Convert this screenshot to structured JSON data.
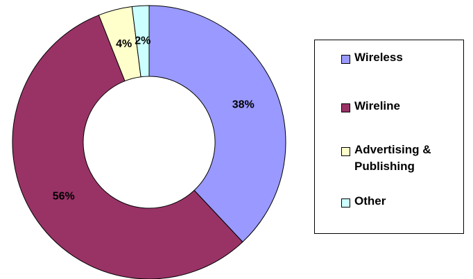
{
  "chart_data": {
    "type": "donut",
    "categories": [
      "Wireless",
      "Wireline",
      "Advertising & Publishing",
      "Other"
    ],
    "values": [
      38,
      56,
      4,
      2
    ],
    "value_labels": [
      "38%",
      "56%",
      "4%",
      "2%"
    ],
    "colors": [
      "#9999ff",
      "#993366",
      "#ffffcc",
      "#ccffff"
    ],
    "legend": "right"
  }
}
